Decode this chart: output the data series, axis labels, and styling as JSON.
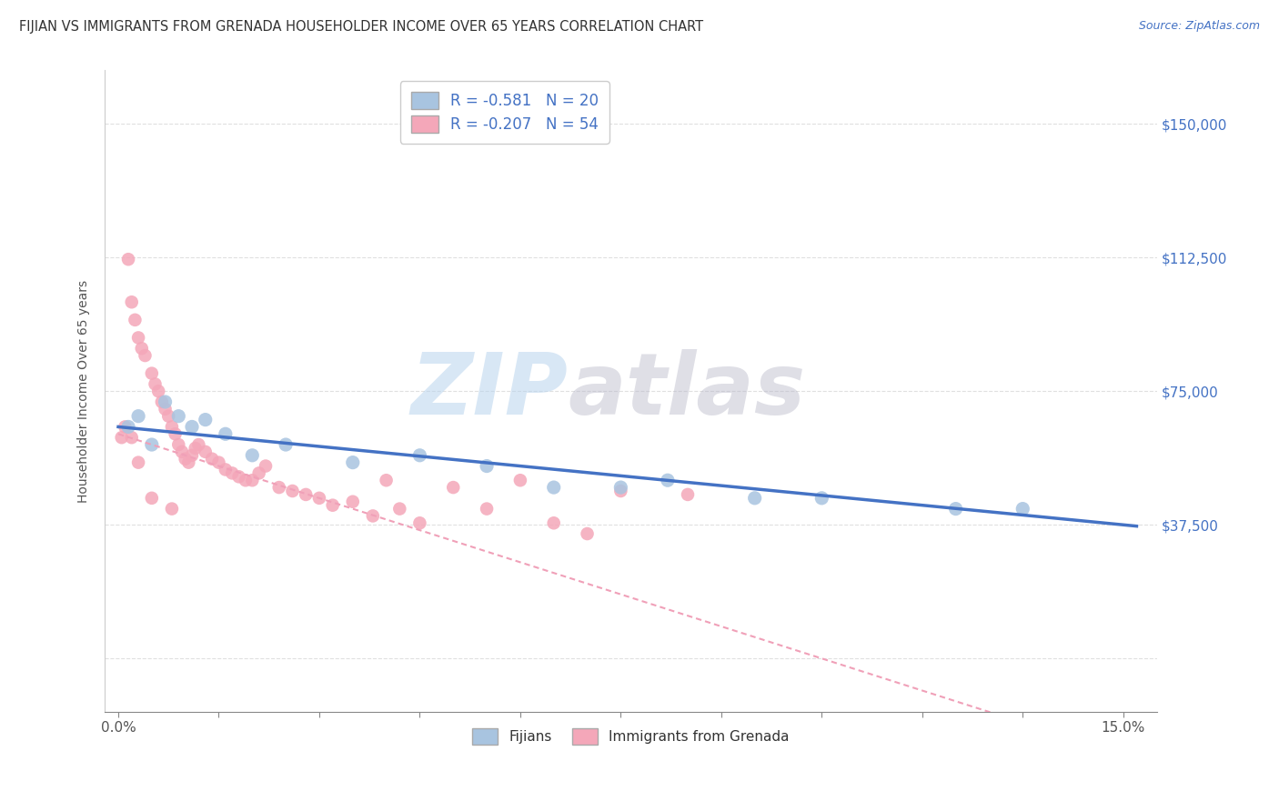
{
  "title": "FIJIAN VS IMMIGRANTS FROM GRENADA HOUSEHOLDER INCOME OVER 65 YEARS CORRELATION CHART",
  "source": "Source: ZipAtlas.com",
  "xlabel_ticks_labels": [
    "0.0%",
    "",
    "",
    "",
    "",
    "",
    "",
    "",
    "",
    "",
    "15.0%"
  ],
  "xlabel_vals": [
    0.0,
    1.5,
    3.0,
    4.5,
    6.0,
    7.5,
    9.0,
    10.5,
    12.0,
    13.5,
    15.0
  ],
  "ylabel": "Householder Income Over 65 years",
  "ylabel_ticks": [
    0,
    37500,
    75000,
    112500,
    150000
  ],
  "ylabel_labels_right": [
    "",
    "$37,500",
    "$75,000",
    "$112,500",
    "$150,000"
  ],
  "xlim": [
    -0.2,
    15.5
  ],
  "ylim": [
    -15000,
    165000
  ],
  "fijian_color": "#a8c4e0",
  "grenada_color": "#f4a7b9",
  "fijian_line_color": "#4472c4",
  "grenada_line_color": "#f0a0b8",
  "legend_R_fijian": "R = -0.581",
  "legend_N_fijian": "N = 20",
  "legend_R_grenada": "R = -0.207",
  "legend_N_grenada": "N = 54",
  "fijian_x": [
    0.15,
    0.3,
    0.5,
    0.7,
    0.9,
    1.1,
    1.3,
    1.6,
    2.0,
    2.5,
    3.5,
    4.5,
    5.5,
    6.5,
    7.5,
    8.2,
    9.5,
    10.5,
    12.5,
    13.5
  ],
  "fijian_y": [
    65000,
    68000,
    60000,
    72000,
    68000,
    65000,
    67000,
    63000,
    57000,
    60000,
    55000,
    57000,
    54000,
    48000,
    48000,
    50000,
    45000,
    45000,
    42000,
    42000
  ],
  "grenada_x": [
    0.05,
    0.1,
    0.15,
    0.2,
    0.25,
    0.3,
    0.35,
    0.4,
    0.5,
    0.55,
    0.6,
    0.65,
    0.7,
    0.75,
    0.8,
    0.85,
    0.9,
    0.95,
    1.0,
    1.05,
    1.1,
    1.15,
    1.2,
    1.3,
    1.4,
    1.5,
    1.6,
    1.7,
    1.8,
    1.9,
    2.0,
    2.1,
    2.2,
    2.4,
    2.6,
    2.8,
    3.0,
    3.2,
    3.5,
    3.8,
    4.0,
    4.2,
    4.5,
    5.0,
    5.5,
    6.0,
    6.5,
    7.0,
    7.5,
    8.5,
    0.2,
    0.3,
    0.5,
    0.8
  ],
  "grenada_y": [
    62000,
    65000,
    112000,
    100000,
    95000,
    90000,
    87000,
    85000,
    80000,
    77000,
    75000,
    72000,
    70000,
    68000,
    65000,
    63000,
    60000,
    58000,
    56000,
    55000,
    57000,
    59000,
    60000,
    58000,
    56000,
    55000,
    53000,
    52000,
    51000,
    50000,
    50000,
    52000,
    54000,
    48000,
    47000,
    46000,
    45000,
    43000,
    44000,
    40000,
    50000,
    42000,
    38000,
    48000,
    42000,
    50000,
    38000,
    35000,
    47000,
    46000,
    62000,
    55000,
    45000,
    42000
  ],
  "watermark_zip": "ZIP",
  "watermark_atlas": "atlas",
  "background_color": "#ffffff",
  "grid_color": "#e0e0e0"
}
